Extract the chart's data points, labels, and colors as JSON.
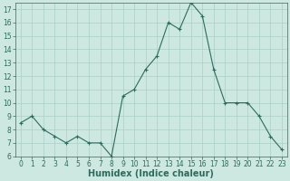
{
  "x": [
    0,
    1,
    2,
    3,
    4,
    5,
    6,
    7,
    8,
    9,
    10,
    11,
    12,
    13,
    14,
    15,
    16,
    17,
    18,
    19,
    20,
    21,
    22,
    23
  ],
  "y": [
    8.5,
    9.0,
    8.0,
    7.5,
    7.0,
    7.5,
    7.0,
    7.0,
    6.0,
    10.5,
    11.0,
    12.5,
    13.5,
    16.0,
    15.5,
    17.5,
    16.5,
    12.5,
    10.0,
    10.0,
    10.0,
    9.0,
    7.5,
    6.5
  ],
  "xlabel": "Humidex (Indice chaleur)",
  "ylim": [
    6,
    17.5
  ],
  "yticks": [
    6,
    7,
    8,
    9,
    10,
    11,
    12,
    13,
    14,
    15,
    16,
    17
  ],
  "xticks": [
    0,
    1,
    2,
    3,
    4,
    5,
    6,
    7,
    8,
    9,
    10,
    11,
    12,
    13,
    14,
    15,
    16,
    17,
    18,
    19,
    20,
    21,
    22,
    23
  ],
  "line_color": "#2e6b5e",
  "marker": "+",
  "background_color": "#cce8e0",
  "grid_color": "#aacfc8",
  "tick_fontsize": 5.5,
  "xlabel_fontsize": 7
}
